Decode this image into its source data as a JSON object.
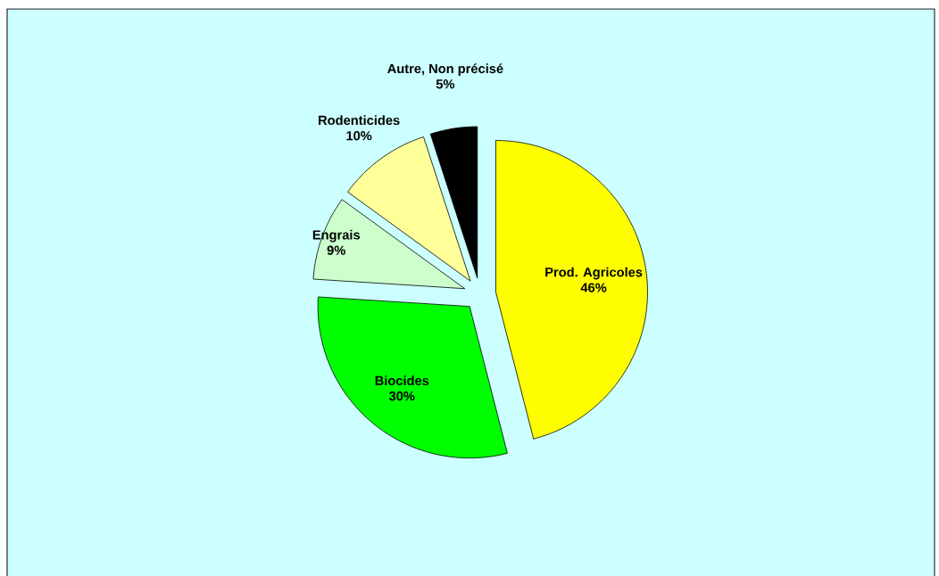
{
  "chart_data": {
    "type": "pie",
    "categories": [
      "Prod. Agricoles",
      "Biocides",
      "Engrais",
      "Rodenticides",
      "Autre, Non précisé"
    ],
    "values": [
      46,
      30,
      9,
      10,
      5
    ],
    "colors": [
      "#ffff00",
      "#00ff00",
      "#ccffcc",
      "#ffff99",
      "#000000"
    ],
    "value_labels": [
      "46%",
      "30%",
      "9%",
      "10%",
      "5%"
    ]
  }
}
